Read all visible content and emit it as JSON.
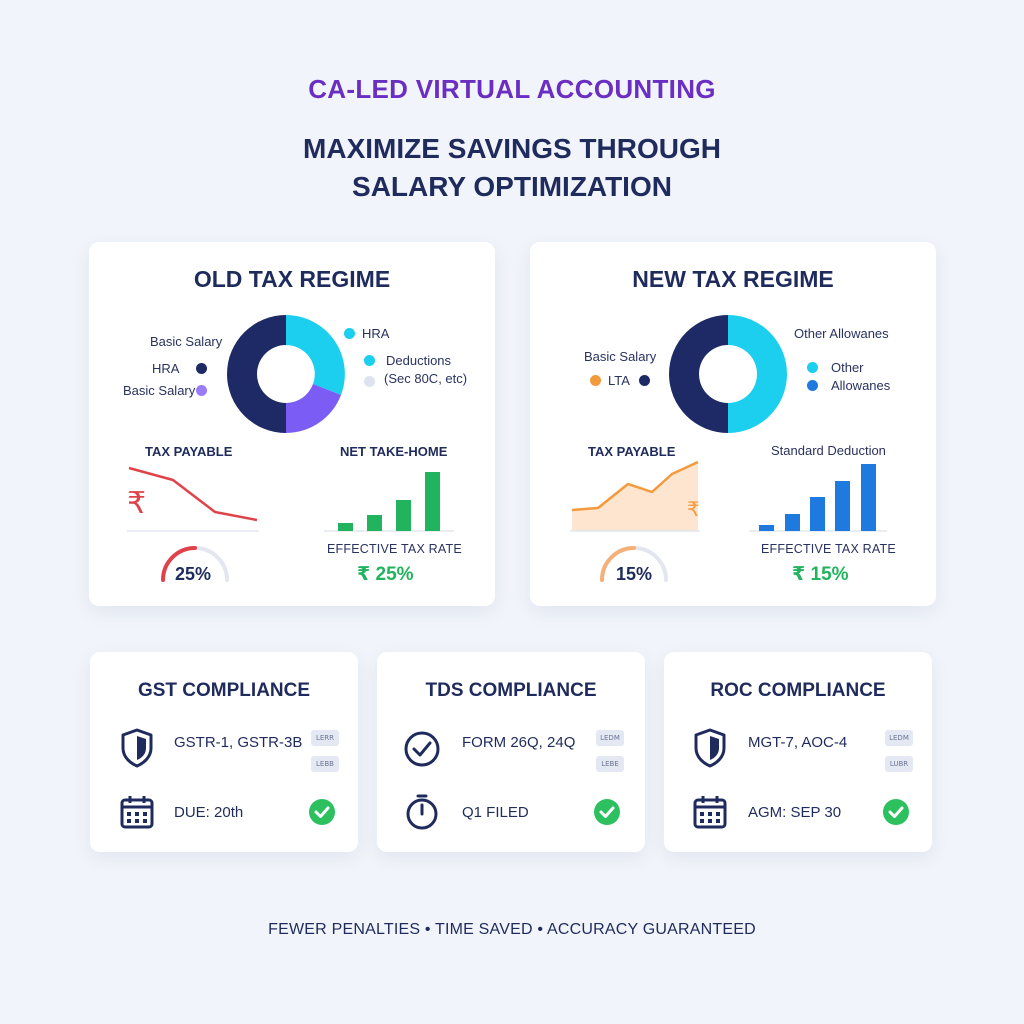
{
  "header": {
    "eyebrow": "CA-LED VIRTUAL ACCOUNTING",
    "headline_line1": "MAXIMIZE SAVINGS THROUGH",
    "headline_line2": "SALARY OPTIMIZATION"
  },
  "old_regime": {
    "title": "OLD TAX REGIME",
    "legend": {
      "top_left": "Basic Salary",
      "left_hra": "HRA",
      "left_basic": "Basic Salary",
      "right_hra": "HRA",
      "right_deductions_1": "Deductions",
      "right_deductions_2": "(Sec 80C, etc)"
    },
    "tax_payable_label": "TAX PAYABLE",
    "currency_symbol": "₹",
    "net_take_home_label": "NET TAKE-HOME",
    "gauge_value": "25%",
    "effective_label": "EFFECTIVE TAX RATE",
    "effective_value": "₹ 25%"
  },
  "new_regime": {
    "title": "NEW TAX REGIME",
    "legend": {
      "top_right": "Other Allowanes",
      "left_basic": "Basic Salary",
      "left_lta": "LTA",
      "right_other_1": "Other",
      "right_other_2": "Allowanes"
    },
    "tax_payable_label": "TAX PAYABLE",
    "currency_symbol": "₹",
    "standard_deduction_label": "Standard Deduction",
    "gauge_value": "15%",
    "effective_label": "EFFECTIVE TAX RATE",
    "effective_value": "₹ 15%"
  },
  "compliance": [
    {
      "title": "GST COMPLIANCE",
      "item1": "GSTR-1, GSTR-3B",
      "item2": "DUE: 20th",
      "pill1": "LERR",
      "pill2": "LEBB",
      "icon1": "shield-icon",
      "icon2": "calendar-icon"
    },
    {
      "title": "TDS COMPLIANCE",
      "item1": "FORM 26Q, 24Q",
      "item2": "Q1 FILED",
      "pill1": "LEDM",
      "pill2": "LEBE",
      "icon1": "check-circle-icon",
      "icon2": "timer-icon"
    },
    {
      "title": "ROC COMPLIANCE",
      "item1": "MGT-7, AOC-4",
      "item2": "AGM: SEP 30",
      "pill1": "LEDM",
      "pill2": "LUBR",
      "icon1": "shield-icon",
      "icon2": "calendar-icon"
    }
  ],
  "footer": "FEWER PENALTIES • TIME SAVED • ACCURACY GUARANTEED",
  "colors": {
    "navy": "#1f2b5c",
    "cyan": "#1ccfee",
    "purple": "#7b5cf5",
    "green": "#2cc05f",
    "red": "#e0424a",
    "orange": "#f39a3c",
    "blue": "#1f7ae0",
    "eyebrow_purple": "#6a2fc2"
  }
}
